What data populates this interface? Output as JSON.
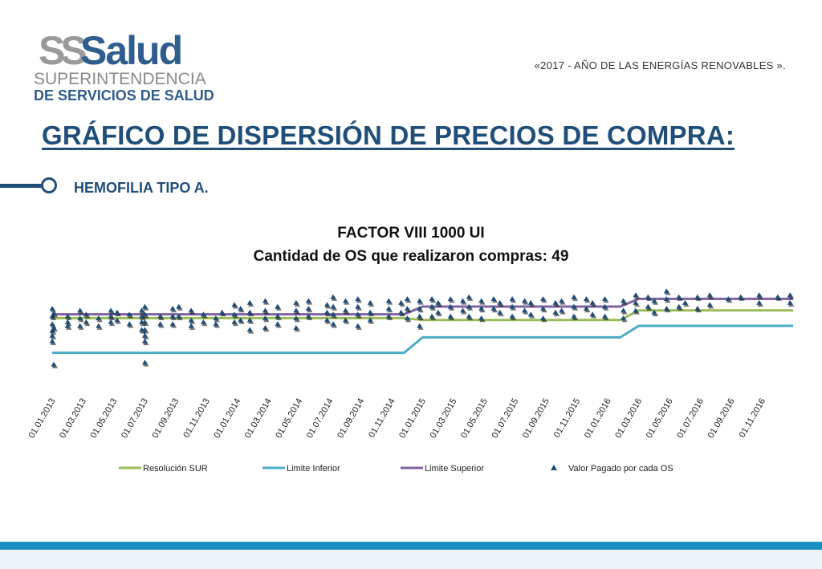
{
  "logo": {
    "mark": "SS",
    "word": "Salud",
    "line1": "SUPERINTENDENCIA",
    "line2": "DE SERVICIOS DE SALUD"
  },
  "motto": "«2017 - AÑO DE LAS ENERGÍAS RENOVABLES ».",
  "page_title": "GRÁFICO DE DISPERSIÓN DE PRECIOS DE COMPRA:",
  "subtitle": "HEMOFILIA TIPO A.",
  "colors": {
    "title": "#1f4e79",
    "resolucion_sur": "#9bbb59",
    "limite_inferior": "#4bacc6",
    "limite_superior": "#8064a2",
    "valor_pagado": "#1f4e79",
    "footer": "#1a8fc4"
  },
  "chart_data": {
    "type": "scatter",
    "title": "FACTOR VIII 1000 UI",
    "subtitle": "Cantidad de OS que realizaron compras: 49",
    "x_tick_labels": [
      "01.01.2013",
      "01.03.2013",
      "01.05.2013",
      "01.07.2013",
      "01.09.2013",
      "01.11.2013",
      "01.01.2014",
      "01.03.2014",
      "01.05.2014",
      "01.07.2014",
      "01.09.2014",
      "01.11.2014",
      "01.01.2015",
      "01.03.2015",
      "01.05.2015",
      "01.07.2015",
      "01.09.2015",
      "01.11.2015",
      "01.01.2016",
      "01.03.2016",
      "01.05.2016",
      "01.07.2016",
      "01.09.2016",
      "01.11.2016"
    ],
    "legend": [
      "Resolución SUR",
      "Limite Inferior",
      "Limite Superior",
      "Valor Pagado por cada OS"
    ],
    "lines": [
      {
        "name": "Resolución SUR",
        "steps": [
          [
            0,
            0.68
          ],
          [
            12,
            0.66
          ],
          [
            19,
            0.76
          ],
          [
            24,
            0.76
          ]
        ]
      },
      {
        "name": "Limite Inferior",
        "steps": [
          [
            0,
            0.32
          ],
          [
            12,
            0.48
          ],
          [
            19,
            0.6
          ],
          [
            24,
            0.6
          ]
        ]
      },
      {
        "name": "Limite Superior",
        "steps": [
          [
            0,
            0.72
          ],
          [
            12,
            0.8
          ],
          [
            19,
            0.88
          ],
          [
            24,
            0.88
          ]
        ]
      }
    ],
    "points": [
      [
        0.0,
        0.78
      ],
      [
        0.0,
        0.7
      ],
      [
        0.0,
        0.62
      ],
      [
        0.0,
        0.55
      ],
      [
        0.0,
        0.5
      ],
      [
        0.0,
        0.44
      ],
      [
        0.05,
        0.73
      ],
      [
        0.05,
        0.58
      ],
      [
        0.05,
        0.2
      ],
      [
        0.5,
        0.7
      ],
      [
        0.5,
        0.64
      ],
      [
        0.5,
        0.6
      ],
      [
        0.9,
        0.76
      ],
      [
        0.9,
        0.68
      ],
      [
        0.9,
        0.6
      ],
      [
        1.1,
        0.72
      ],
      [
        1.1,
        0.64
      ],
      [
        1.5,
        0.68
      ],
      [
        1.5,
        0.6
      ],
      [
        1.9,
        0.76
      ],
      [
        1.9,
        0.7
      ],
      [
        1.9,
        0.64
      ],
      [
        2.1,
        0.74
      ],
      [
        2.1,
        0.66
      ],
      [
        2.5,
        0.72
      ],
      [
        2.5,
        0.62
      ],
      [
        2.9,
        0.76
      ],
      [
        2.9,
        0.7
      ],
      [
        2.9,
        0.64
      ],
      [
        2.9,
        0.56
      ],
      [
        3.0,
        0.8
      ],
      [
        3.0,
        0.72
      ],
      [
        3.0,
        0.64
      ],
      [
        3.0,
        0.56
      ],
      [
        3.0,
        0.5
      ],
      [
        3.0,
        0.44
      ],
      [
        3.0,
        0.22
      ],
      [
        3.5,
        0.7
      ],
      [
        3.5,
        0.62
      ],
      [
        3.9,
        0.78
      ],
      [
        3.9,
        0.7
      ],
      [
        3.9,
        0.62
      ],
      [
        4.1,
        0.8
      ],
      [
        4.1,
        0.7
      ],
      [
        4.5,
        0.76
      ],
      [
        4.5,
        0.66
      ],
      [
        4.5,
        0.6
      ],
      [
        4.9,
        0.72
      ],
      [
        4.9,
        0.64
      ],
      [
        5.3,
        0.68
      ],
      [
        5.3,
        0.62
      ],
      [
        5.5,
        0.74
      ],
      [
        5.9,
        0.82
      ],
      [
        5.9,
        0.72
      ],
      [
        5.9,
        0.64
      ],
      [
        6.1,
        0.78
      ],
      [
        6.1,
        0.66
      ],
      [
        6.4,
        0.84
      ],
      [
        6.4,
        0.74
      ],
      [
        6.4,
        0.66
      ],
      [
        6.4,
        0.56
      ],
      [
        6.9,
        0.86
      ],
      [
        6.9,
        0.76
      ],
      [
        6.9,
        0.68
      ],
      [
        6.9,
        0.58
      ],
      [
        7.3,
        0.8
      ],
      [
        7.3,
        0.7
      ],
      [
        7.3,
        0.62
      ],
      [
        7.9,
        0.84
      ],
      [
        7.9,
        0.76
      ],
      [
        7.9,
        0.68
      ],
      [
        7.9,
        0.58
      ],
      [
        8.3,
        0.86
      ],
      [
        8.3,
        0.78
      ],
      [
        8.3,
        0.7
      ],
      [
        8.9,
        0.82
      ],
      [
        8.9,
        0.74
      ],
      [
        8.9,
        0.66
      ],
      [
        9.1,
        0.9
      ],
      [
        9.1,
        0.8
      ],
      [
        9.1,
        0.72
      ],
      [
        9.1,
        0.62
      ],
      [
        9.5,
        0.86
      ],
      [
        9.5,
        0.76
      ],
      [
        9.5,
        0.66
      ],
      [
        9.9,
        0.88
      ],
      [
        9.9,
        0.8
      ],
      [
        9.9,
        0.72
      ],
      [
        9.9,
        0.6
      ],
      [
        10.3,
        0.84
      ],
      [
        10.3,
        0.74
      ],
      [
        10.3,
        0.66
      ],
      [
        10.9,
        0.86
      ],
      [
        10.9,
        0.78
      ],
      [
        10.9,
        0.7
      ],
      [
        11.3,
        0.84
      ],
      [
        11.3,
        0.74
      ],
      [
        11.5,
        0.88
      ],
      [
        11.5,
        0.78
      ],
      [
        11.5,
        0.68
      ],
      [
        11.9,
        0.86
      ],
      [
        11.9,
        0.78
      ],
      [
        11.9,
        0.7
      ],
      [
        11.9,
        0.6
      ],
      [
        12.3,
        0.88
      ],
      [
        12.3,
        0.8
      ],
      [
        12.3,
        0.7
      ],
      [
        12.5,
        0.84
      ],
      [
        12.5,
        0.74
      ],
      [
        12.9,
        0.88
      ],
      [
        12.9,
        0.8
      ],
      [
        12.9,
        0.7
      ],
      [
        13.3,
        0.86
      ],
      [
        13.3,
        0.76
      ],
      [
        13.5,
        0.9
      ],
      [
        13.5,
        0.8
      ],
      [
        13.5,
        0.7
      ],
      [
        13.9,
        0.86
      ],
      [
        13.9,
        0.78
      ],
      [
        13.9,
        0.68
      ],
      [
        14.3,
        0.88
      ],
      [
        14.3,
        0.78
      ],
      [
        14.5,
        0.84
      ],
      [
        14.5,
        0.74
      ],
      [
        14.9,
        0.88
      ],
      [
        14.9,
        0.8
      ],
      [
        14.9,
        0.7
      ],
      [
        15.3,
        0.86
      ],
      [
        15.3,
        0.76
      ],
      [
        15.5,
        0.84
      ],
      [
        15.5,
        0.72
      ],
      [
        15.9,
        0.88
      ],
      [
        15.9,
        0.78
      ],
      [
        15.9,
        0.68
      ],
      [
        16.3,
        0.84
      ],
      [
        16.3,
        0.74
      ],
      [
        16.5,
        0.86
      ],
      [
        16.5,
        0.76
      ],
      [
        16.9,
        0.9
      ],
      [
        16.9,
        0.8
      ],
      [
        16.9,
        0.7
      ],
      [
        17.3,
        0.88
      ],
      [
        17.3,
        0.78
      ],
      [
        17.5,
        0.84
      ],
      [
        17.5,
        0.72
      ],
      [
        17.9,
        0.88
      ],
      [
        17.9,
        0.8
      ],
      [
        17.9,
        0.7
      ],
      [
        18.5,
        0.86
      ],
      [
        18.5,
        0.76
      ],
      [
        18.5,
        0.68
      ],
      [
        18.9,
        0.92
      ],
      [
        18.9,
        0.84
      ],
      [
        18.9,
        0.76
      ],
      [
        19.3,
        0.9
      ],
      [
        19.3,
        0.8
      ],
      [
        19.5,
        0.86
      ],
      [
        19.5,
        0.74
      ],
      [
        19.9,
        0.96
      ],
      [
        19.9,
        0.88
      ],
      [
        19.9,
        0.78
      ],
      [
        20.3,
        0.9
      ],
      [
        20.3,
        0.8
      ],
      [
        20.5,
        0.84
      ],
      [
        20.9,
        0.9
      ],
      [
        20.9,
        0.78
      ],
      [
        21.3,
        0.92
      ],
      [
        21.3,
        0.82
      ],
      [
        21.9,
        0.88
      ],
      [
        22.3,
        0.9
      ],
      [
        22.9,
        0.92
      ],
      [
        22.9,
        0.84
      ],
      [
        23.5,
        0.9
      ],
      [
        23.9,
        0.92
      ],
      [
        23.9,
        0.84
      ]
    ],
    "grid": false,
    "legend_position": "bottom"
  }
}
